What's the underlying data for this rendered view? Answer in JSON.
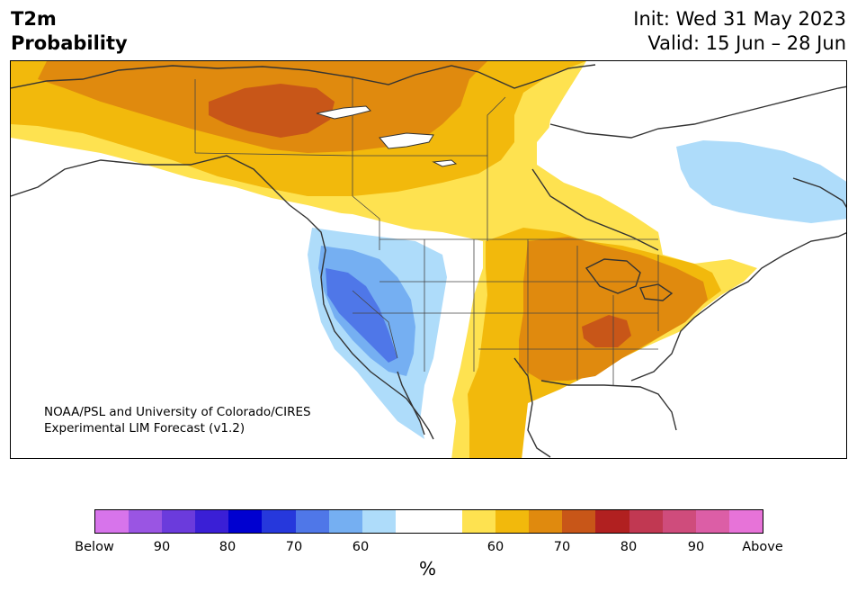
{
  "header": {
    "title_line1": "T2m",
    "title_line2": "Probability",
    "init": "Init: Wed 31 May 2023",
    "valid": "Valid: 15 Jun – 28 Jun"
  },
  "credit": {
    "line1": "NOAA/PSL and University of Colorado/CIRES",
    "line2": "Experimental LIM Forecast (v1.2)"
  },
  "colorbar": {
    "units": "%",
    "colors": [
      "#d774eb",
      "#9a55e3",
      "#6b3bdc",
      "#3a1fd6",
      "#0000d0",
      "#2638dc",
      "#4f77e8",
      "#75aff2",
      "#aedcfa",
      "#ffffff",
      "#fee250",
      "#f2b90c",
      "#e08a0e",
      "#c85618",
      "#b12020",
      "#c13852",
      "#cf4c7c",
      "#dc5ea6",
      "#e773d8"
    ],
    "tick_labels": [
      "Below",
      "90",
      "80",
      "70",
      "60",
      "60",
      "70",
      "80",
      "90",
      "Above"
    ]
  },
  "map_colors": {
    "above_60": "#fee250",
    "above_65": "#f2b90c",
    "above_70": "#e08a0e",
    "above_75": "#c85618",
    "below_60": "#aedcfa",
    "below_65": "#75aff2",
    "below_70": "#4f77e8",
    "land_line": "#333333"
  }
}
